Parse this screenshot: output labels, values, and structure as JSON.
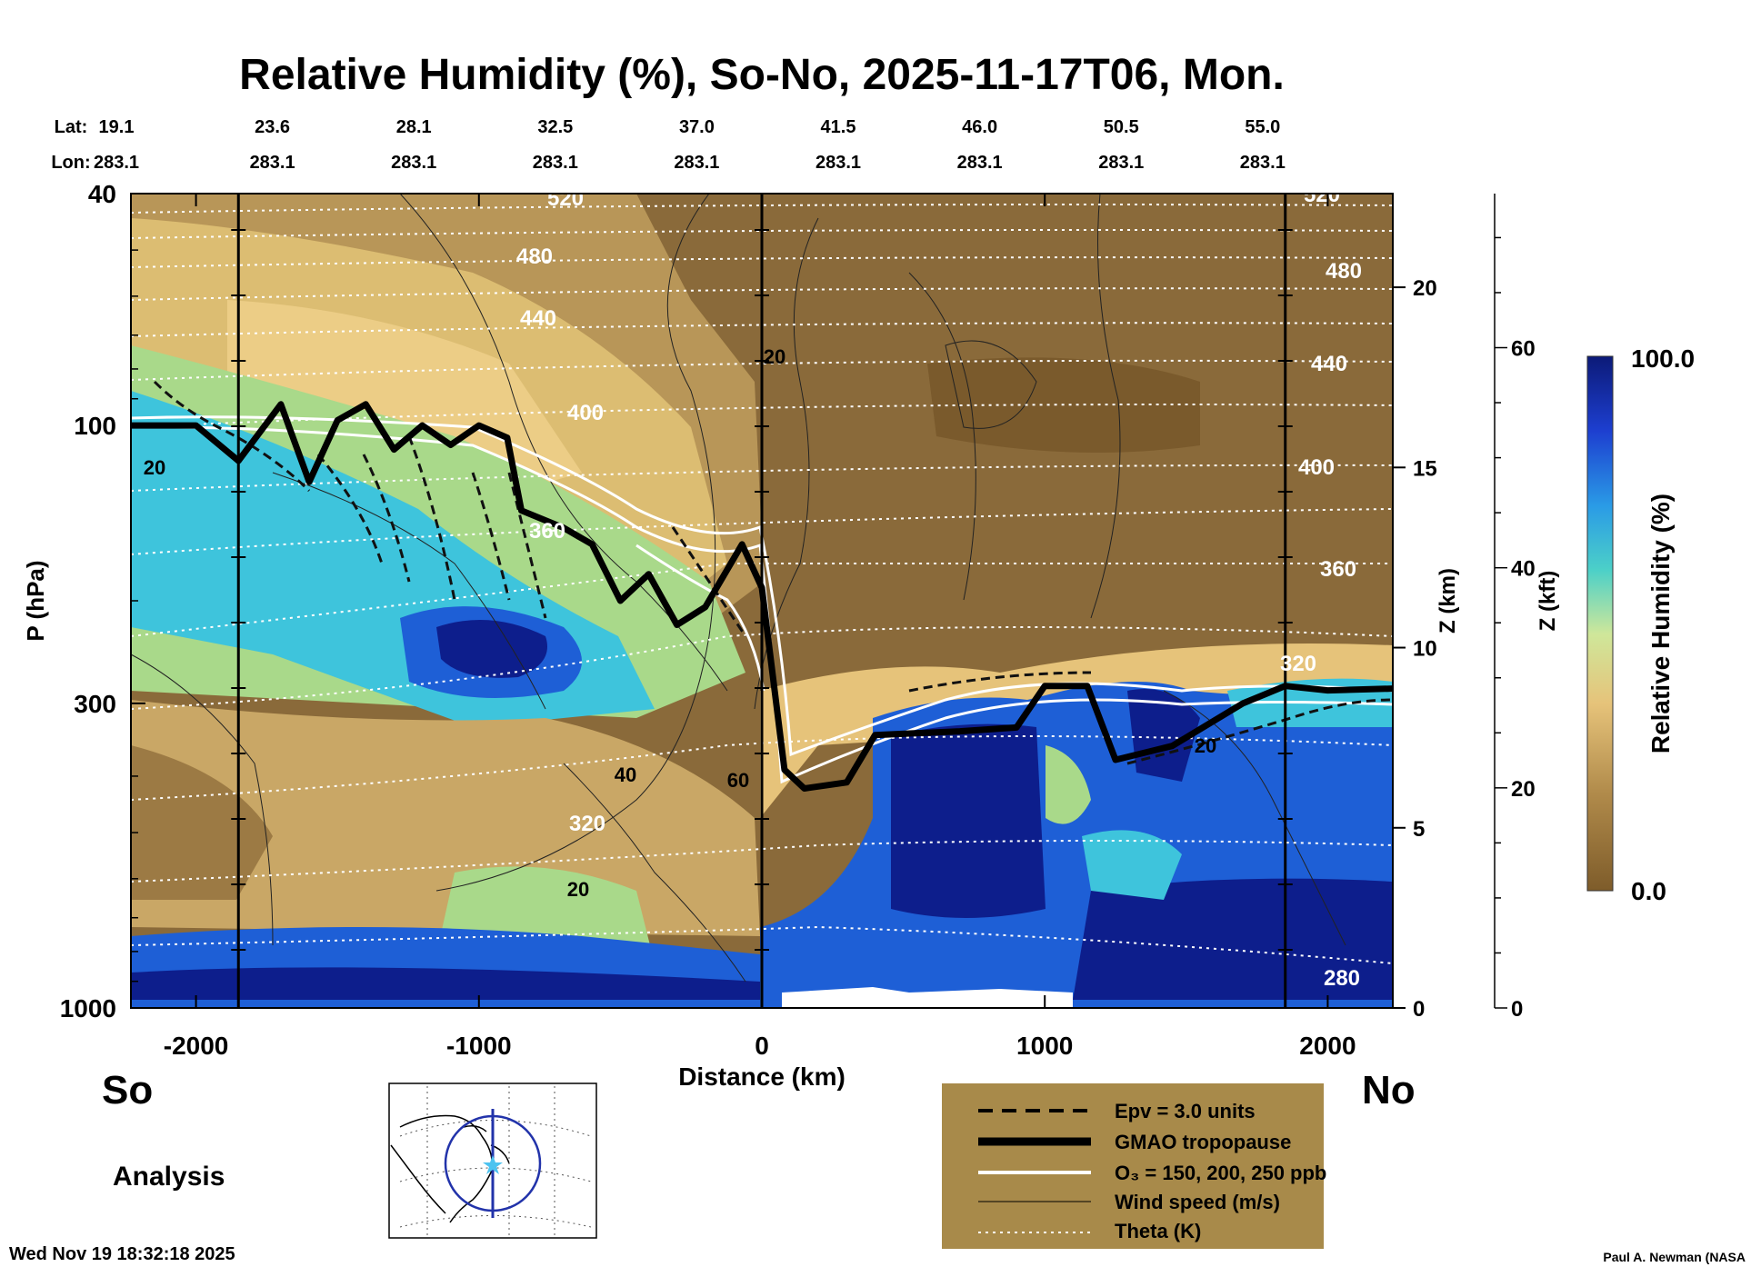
{
  "chart_data": {
    "type": "heatmap",
    "title": "Relative Humidity (%), So-No, 2025-11-17T06, Mon.",
    "xlabel": "Distance (km)",
    "ylabel": "P (hPa)",
    "z_km_label": "Z (km)",
    "z_kft_label": "Z (kft)",
    "colorbar_label": "Relative Humidity (%)",
    "colorbar_min": "0.0",
    "colorbar_max": "100.0",
    "xlim": [
      -2230,
      2230
    ],
    "ylim_hpa": [
      1000,
      40
    ],
    "x_ticks": [
      "-2000",
      "-1000",
      "0",
      "1000",
      "2000"
    ],
    "x_tick_values": [
      -2000,
      -1000,
      0,
      1000,
      2000
    ],
    "p_ticks": [
      "40",
      "100",
      "300",
      "1000"
    ],
    "p_tick_values": [
      40,
      100,
      300,
      1000
    ],
    "z_km_ticks": [
      "0",
      "5",
      "10",
      "15",
      "20"
    ],
    "z_km_values": [
      0,
      5,
      10,
      15,
      20
    ],
    "z_kft_ticks": [
      "0",
      "20",
      "40",
      "60"
    ],
    "z_kft_values": [
      0,
      20,
      40,
      60
    ],
    "lat_label": "Lat:",
    "lon_label": "Lon:",
    "lat_values": [
      "19.1",
      "23.6",
      "28.1",
      "32.5",
      "37.0",
      "41.5",
      "46.0",
      "50.5",
      "55.0"
    ],
    "lon_values": [
      "283.1",
      "283.1",
      "283.1",
      "283.1",
      "283.1",
      "283.1",
      "283.1",
      "283.1",
      "283.1"
    ],
    "station_distances": [
      -2230,
      -1730,
      -1230,
      -730,
      -230,
      270,
      770,
      1270,
      1770
    ],
    "vertical_lines_km": [
      -1850,
      0,
      1850
    ],
    "theta_contours_K": [
      "280",
      "320",
      "360",
      "400",
      "440",
      "480",
      "520"
    ],
    "wind_contours_ms": [
      "20",
      "40",
      "60"
    ],
    "tropopause_hpa": [
      [
        -2230,
        100
      ],
      [
        -2000,
        100
      ],
      [
        -1850,
        115
      ],
      [
        -1700,
        92
      ],
      [
        -1600,
        125
      ],
      [
        -1500,
        98
      ],
      [
        -1400,
        92
      ],
      [
        -1300,
        110
      ],
      [
        -1200,
        100
      ],
      [
        -1100,
        108
      ],
      [
        -1000,
        100
      ],
      [
        -900,
        105
      ],
      [
        -850,
        140
      ],
      [
        -700,
        150
      ],
      [
        -600,
        160
      ],
      [
        -500,
        200
      ],
      [
        -400,
        180
      ],
      [
        -300,
        220
      ],
      [
        -200,
        205
      ],
      [
        -70,
        160
      ],
      [
        0,
        190
      ],
      [
        80,
        390
      ],
      [
        150,
        420
      ],
      [
        300,
        410
      ],
      [
        400,
        340
      ],
      [
        700,
        335
      ],
      [
        900,
        330
      ],
      [
        1000,
        280
      ],
      [
        1150,
        280
      ],
      [
        1250,
        375
      ],
      [
        1450,
        355
      ],
      [
        1700,
        300
      ],
      [
        1850,
        280
      ],
      [
        2000,
        285
      ],
      [
        2230,
        283
      ]
    ],
    "legend": [
      {
        "style": "dashed",
        "label": "Epv = 3.0 units"
      },
      {
        "style": "thick",
        "label": "GMAO tropopause"
      },
      {
        "style": "white",
        "label": "O₃ = 150, 200, 250 ppb"
      },
      {
        "style": "thin",
        "label": "Wind speed (m/s)"
      },
      {
        "style": "dotted",
        "label": "Theta (K)"
      }
    ]
  },
  "labels": {
    "south": "So",
    "north": "No",
    "mode": "Analysis",
    "timestamp": "Wed Nov 19 18:32:18 2025",
    "credit": "Paul A. Newman (NASA"
  },
  "colors": {
    "dry": "#8a6a3a",
    "tan": "#c9a766",
    "pale": "#ead28e",
    "green": "#a9d98a",
    "cyan": "#3ec4dc",
    "blue": "#1e5fd6",
    "navy": "#0d1e8c",
    "legend_bg": "#a88a4a"
  }
}
